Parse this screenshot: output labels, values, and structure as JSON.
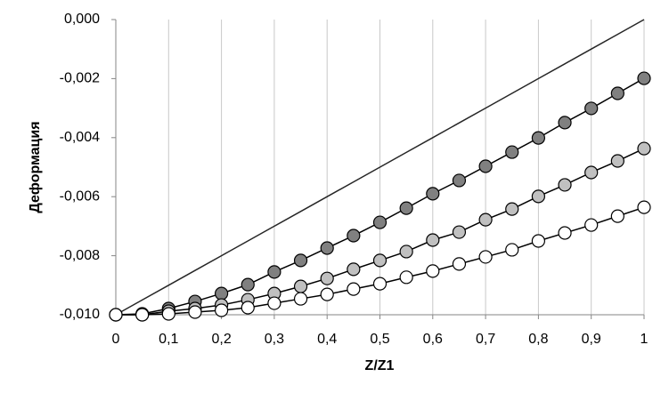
{
  "chart_data": {
    "type": "line",
    "x_label": "Z/Z1",
    "y_label": "Деформация",
    "x": [
      0,
      0.05,
      0.1,
      0.15,
      0.2,
      0.25,
      0.3,
      0.35,
      0.4,
      0.45,
      0.5,
      0.55,
      0.6,
      0.65,
      0.7,
      0.75,
      0.8,
      0.85,
      0.9,
      0.95,
      1
    ],
    "series": [
      {
        "color": "#262626",
        "marker": "none",
        "values": [
          -0.01,
          -0.0095,
          -0.009,
          -0.0085,
          -0.008,
          -0.0075,
          -0.007,
          -0.0065,
          -0.006,
          -0.0055,
          -0.005,
          -0.0045,
          -0.004,
          -0.0035,
          -0.003,
          -0.0025,
          -0.002,
          -0.0015,
          -0.001,
          -0.0005,
          0.0
        ]
      },
      {
        "color": "#808080",
        "marker": "circle",
        "values": [
          -0.01,
          -0.00997,
          -0.00979,
          -0.00955,
          -0.00928,
          -0.00898,
          -0.00855,
          -0.00816,
          -0.00774,
          -0.00732,
          -0.00687,
          -0.00639,
          -0.0059,
          -0.00545,
          -0.00497,
          -0.00449,
          -0.00401,
          -0.00349,
          -0.00301,
          -0.0025,
          -0.00199
        ]
      },
      {
        "color": "#c0c0c0",
        "marker": "circle",
        "values": [
          -0.01,
          -0.01,
          -0.00988,
          -0.00979,
          -0.00967,
          -0.00949,
          -0.00928,
          -0.00904,
          -0.00877,
          -0.00846,
          -0.00816,
          -0.00786,
          -0.00747,
          -0.0072,
          -0.00678,
          -0.00642,
          -0.00599,
          -0.0056,
          -0.00518,
          -0.00479,
          -0.00437
        ]
      },
      {
        "color": "#ffffff",
        "marker": "circle",
        "values": [
          -0.01,
          -0.01,
          -0.00997,
          -0.00991,
          -0.00985,
          -0.00976,
          -0.00961,
          -0.00946,
          -0.00931,
          -0.00913,
          -0.00895,
          -0.00873,
          -0.00852,
          -0.00828,
          -0.00804,
          -0.0078,
          -0.0075,
          -0.00723,
          -0.00696,
          -0.00666,
          -0.00636
        ]
      }
    ],
    "xlim": [
      0,
      1
    ],
    "xticks": [
      0,
      {
        "value": 0.1,
        "label": "0,1"
      },
      {
        "value": 0.2,
        "label": "0,2"
      },
      {
        "value": 0.3,
        "label": "0,3"
      },
      {
        "value": 0.4,
        "label": "0,4"
      },
      {
        "value": 0.5,
        "label": "0,5"
      },
      {
        "value": 0.6,
        "label": "0,6"
      },
      {
        "value": 0.7,
        "label": "0,7"
      },
      {
        "value": 0.8,
        "label": "0,8"
      },
      {
        "value": 0.9,
        "label": "0,9"
      },
      1
    ],
    "ylim": [
      -0.01,
      0.0
    ],
    "yticks": [
      {
        "value": 0.0,
        "label": "0,000"
      },
      {
        "value": -0.002,
        "label": "-0,002"
      },
      {
        "value": -0.004,
        "label": "-0,004"
      },
      {
        "value": -0.006,
        "label": "-0,006"
      },
      {
        "value": -0.008,
        "label": "-0,008"
      },
      {
        "value": -0.01,
        "label": "-0,010"
      }
    ],
    "grid": "x"
  }
}
